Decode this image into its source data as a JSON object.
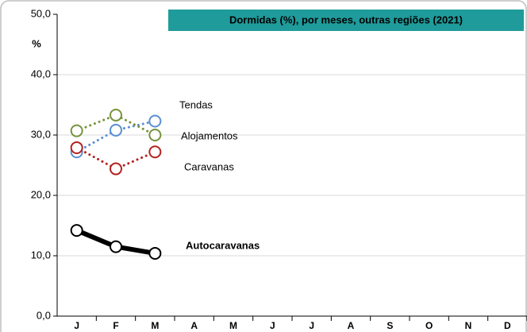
{
  "chart_data": {
    "type": "line",
    "title": "Dormidas (%), por meses, outras regiões (2021)",
    "y_label": "%",
    "categories": [
      "J",
      "F",
      "M",
      "A",
      "M",
      "J",
      "J",
      "A",
      "S",
      "O",
      "N",
      "D"
    ],
    "series": [
      {
        "name": "Tendas",
        "color": "#5b8fd1",
        "style": "dotted",
        "values": [
          27.2,
          30.8,
          32.3,
          null,
          null,
          null,
          null,
          null,
          null,
          null,
          null,
          null
        ]
      },
      {
        "name": "Alojamentos",
        "color": "#77933c",
        "style": "dotted",
        "values": [
          30.7,
          33.3,
          30.0,
          null,
          null,
          null,
          null,
          null,
          null,
          null,
          null,
          null
        ]
      },
      {
        "name": "Caravanas",
        "color": "#b22222",
        "style": "dotted",
        "values": [
          27.9,
          24.4,
          27.2,
          null,
          null,
          null,
          null,
          null,
          null,
          null,
          null,
          null
        ]
      },
      {
        "name": "Autocaravanas",
        "color": "#000000",
        "style": "solid",
        "values": [
          14.2,
          11.5,
          10.4,
          null,
          null,
          null,
          null,
          null,
          null,
          null,
          null,
          null
        ]
      }
    ],
    "ylim": [
      0,
      50
    ],
    "yticks": [
      {
        "value": 0,
        "label": "0,0"
      },
      {
        "value": 10,
        "label": "10,0"
      },
      {
        "value": 20,
        "label": "20,0"
      },
      {
        "value": 30,
        "label": "30,0"
      },
      {
        "value": 40,
        "label": "40,0"
      },
      {
        "value": 50,
        "label": "50,0"
      }
    ],
    "grid": true,
    "title_color": "#1f9b9b"
  }
}
